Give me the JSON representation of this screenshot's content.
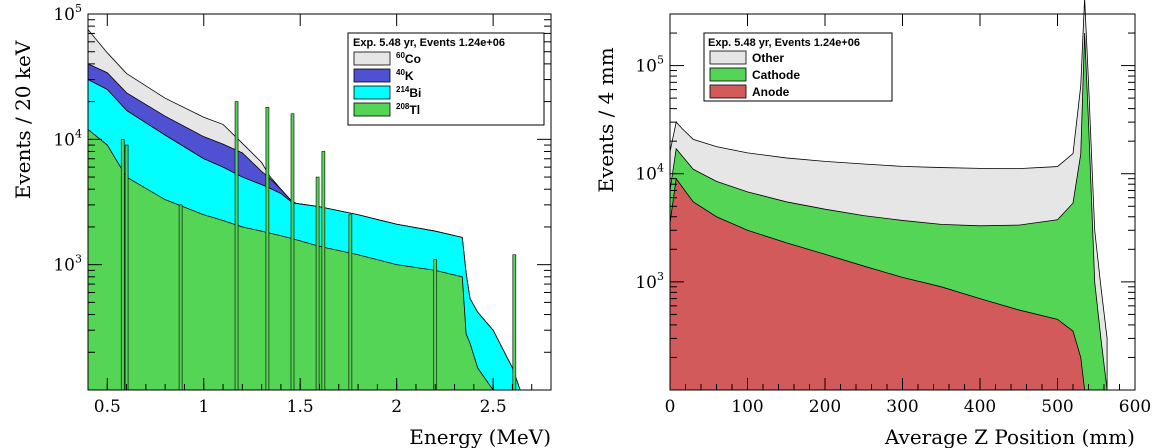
{
  "chart_data": [
    {
      "type": "area",
      "xlabel": "Energy (MeV)",
      "ylabel": "Events / 20 keV",
      "xlim": [
        0.4,
        2.8
      ],
      "ylim": [
        100,
        100000
      ],
      "yscale": "log",
      "xticks": [
        {
          "v": 0.5,
          "label": "0.5"
        },
        {
          "v": 1,
          "label": "1"
        },
        {
          "v": 1.5,
          "label": "1.5"
        },
        {
          "v": 2,
          "label": "2"
        },
        {
          "v": 2.5,
          "label": "2.5"
        }
      ],
      "yticks": [
        {
          "v": 1000,
          "base": "10",
          "exp": "3"
        },
        {
          "v": 10000,
          "base": "10",
          "exp": "4"
        },
        {
          "v": 100000,
          "base": "10",
          "exp": "5"
        }
      ],
      "legend": {
        "title": "Exp. 5.48 yr, Events 1.24e+06",
        "placement": "top-right",
        "entries": [
          {
            "sup": "60",
            "name": "Co",
            "color": "#e6e6e6"
          },
          {
            "sup": "40",
            "name": "K",
            "color": "#5050d2"
          },
          {
            "sup": "214",
            "name": "Bi",
            "color": "#00ffff"
          },
          {
            "sup": "208",
            "name": "Tl",
            "color": "#55d555"
          }
        ]
      },
      "stacked": true,
      "series": [
        {
          "name": "Tl",
          "color": "#55d555",
          "x": [
            0.4,
            0.5,
            0.6,
            0.8,
            1.0,
            1.2,
            1.4,
            1.6,
            1.8,
            2.0,
            2.2,
            2.34,
            2.36,
            2.42,
            2.5
          ],
          "values": [
            12000,
            9000,
            5000,
            3300,
            2500,
            2000,
            1700,
            1400,
            1200,
            1000,
            900,
            800,
            280,
            150,
            100
          ]
        },
        {
          "name": "Bi",
          "color": "#00ffff",
          "x": [
            0.4,
            0.5,
            0.6,
            0.8,
            1.0,
            1.2,
            1.4,
            1.46,
            1.6,
            1.8,
            2.0,
            2.2,
            2.34,
            2.38,
            2.5,
            2.6,
            2.64,
            2.7
          ],
          "values": [
            18000,
            16000,
            12000,
            7500,
            4500,
            3000,
            2000,
            1500,
            1500,
            1300,
            1100,
            950,
            850,
            300,
            200,
            150,
            100,
            100
          ]
        },
        {
          "name": "K",
          "color": "#5050d2",
          "x": [
            0.4,
            0.5,
            0.6,
            0.8,
            1.0,
            1.2,
            1.3,
            1.4,
            1.46,
            1.48
          ],
          "values": [
            10000,
            9000,
            6500,
            4500,
            3500,
            2800,
            1200,
            300,
            50,
            0
          ]
        },
        {
          "name": "Co",
          "color": "#e6e6e6",
          "x": [
            0.4,
            0.5,
            0.6,
            0.8,
            1.0,
            1.1,
            1.2,
            1.3,
            1.34,
            1.4
          ],
          "values": [
            35000,
            15000,
            10000,
            6000,
            4500,
            4000,
            1500,
            1000,
            200,
            0
          ]
        }
      ],
      "peaks": [
        {
          "x": 0.58,
          "y": 10000
        },
        {
          "x": 0.6,
          "y": 9000
        },
        {
          "x": 0.88,
          "y": 3000
        },
        {
          "x": 1.17,
          "y": 20000
        },
        {
          "x": 1.33,
          "y": 18000
        },
        {
          "x": 1.46,
          "y": 16000
        },
        {
          "x": 1.59,
          "y": 5000
        },
        {
          "x": 1.62,
          "y": 8000
        },
        {
          "x": 1.76,
          "y": 2500
        },
        {
          "x": 2.2,
          "y": 1100
        },
        {
          "x": 2.61,
          "y": 1200
        }
      ]
    },
    {
      "type": "area",
      "xlabel": "Average Z Position (mm)",
      "ylabel": "Events / 4 mm",
      "xlim": [
        0,
        600
      ],
      "ylim": [
        100,
        300000
      ],
      "yscale": "log",
      "xticks": [
        {
          "v": 0,
          "label": "0"
        },
        {
          "v": 100,
          "label": "100"
        },
        {
          "v": 200,
          "label": "200"
        },
        {
          "v": 300,
          "label": "300"
        },
        {
          "v": 400,
          "label": "400"
        },
        {
          "v": 500,
          "label": "500"
        },
        {
          "v": 600,
          "label": "600"
        }
      ],
      "yticks": [
        {
          "v": 1000,
          "base": "10",
          "exp": "3"
        },
        {
          "v": 10000,
          "base": "10",
          "exp": "4"
        },
        {
          "v": 100000,
          "base": "10",
          "exp": "5"
        }
      ],
      "legend": {
        "title": "Exp. 5.48 yr, Events 1.24e+06",
        "placement": "top-left",
        "entries": [
          {
            "name": "Other",
            "color": "#e6e6e6"
          },
          {
            "name": "Cathode",
            "color": "#55d555"
          },
          {
            "name": "Anode",
            "color": "#d25a5a"
          }
        ]
      },
      "stacked": true,
      "series": [
        {
          "name": "Anode",
          "color": "#d25a5a",
          "x": [
            0,
            8,
            16,
            30,
            60,
            100,
            150,
            200,
            250,
            300,
            350,
            400,
            450,
            500,
            520,
            530,
            535,
            540
          ],
          "values": [
            3500,
            9000,
            7500,
            5500,
            4000,
            3000,
            2300,
            1800,
            1400,
            1100,
            900,
            700,
            550,
            450,
            350,
            200,
            100,
            100
          ]
        },
        {
          "name": "Cathode",
          "color": "#55d555",
          "x": [
            0,
            8,
            16,
            30,
            60,
            100,
            150,
            200,
            250,
            300,
            350,
            400,
            450,
            500,
            520,
            530,
            535,
            540,
            548,
            556,
            564
          ],
          "values": [
            3500,
            8000,
            7000,
            5500,
            4500,
            3800,
            3200,
            2900,
            2700,
            2600,
            2500,
            2600,
            2800,
            3300,
            5000,
            15000,
            200000,
            30000,
            1000,
            300,
            100
          ]
        },
        {
          "name": "Other",
          "color": "#e6e6e6",
          "x": [
            0,
            8,
            16,
            30,
            60,
            100,
            150,
            200,
            250,
            300,
            350,
            400,
            450,
            500,
            520,
            530,
            535,
            540,
            548,
            556,
            564
          ],
          "values": [
            9000,
            13000,
            11500,
            9800,
            9300,
            8800,
            8500,
            8300,
            8200,
            8000,
            8000,
            7900,
            7800,
            7900,
            10000,
            50000,
            220000,
            40000,
            2000,
            600,
            200
          ]
        }
      ]
    }
  ]
}
